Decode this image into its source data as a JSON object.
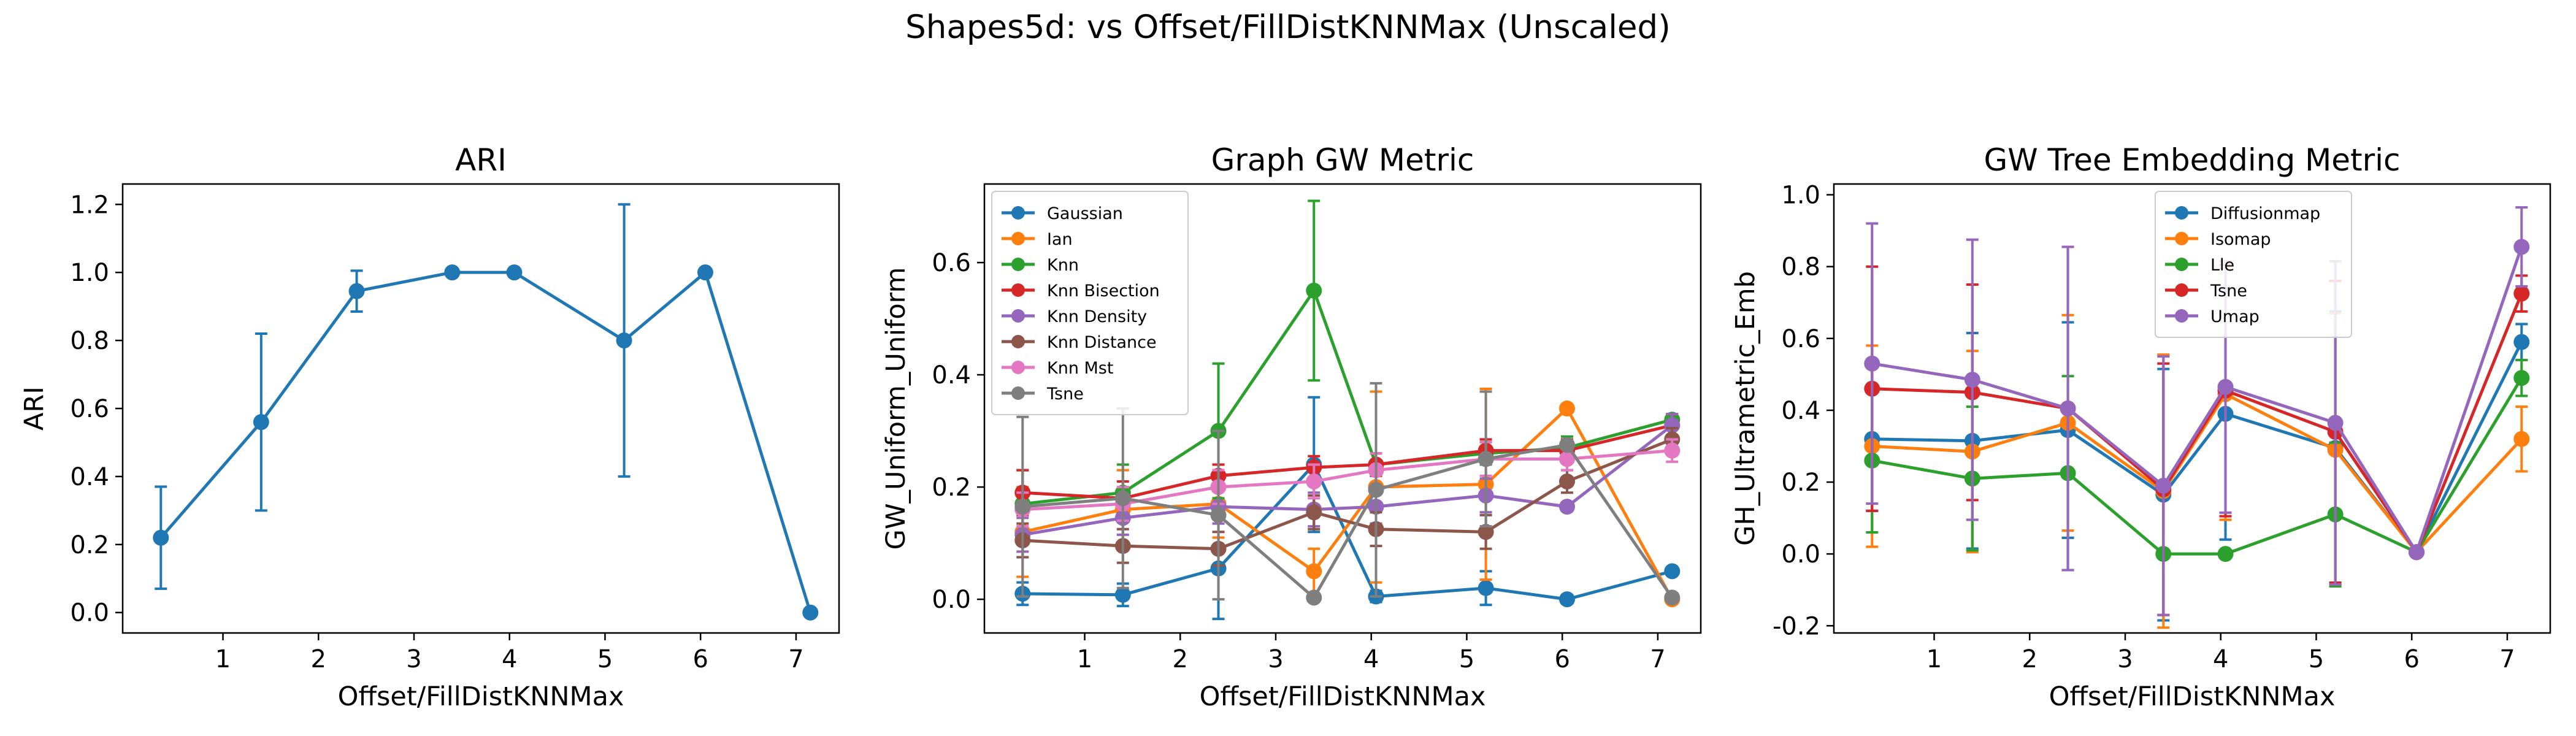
{
  "figure": {
    "title": "Shapes5d: vs Offset/FillDistKNNMax (Unscaled)"
  },
  "chart_data": [
    {
      "type": "line",
      "title": "ARI",
      "xlabel": "Offset/FillDistKNNMax",
      "ylabel": "ARI",
      "xlim": [
        -0.05,
        7.45
      ],
      "ylim": [
        -0.06,
        1.26
      ],
      "xticks": [
        1,
        2,
        3,
        4,
        5,
        6,
        7
      ],
      "yticks": [
        0.0,
        0.2,
        0.4,
        0.6,
        0.8,
        1.0,
        1.2
      ],
      "ytick_decimals": 1,
      "legend": null,
      "x": [
        0.35,
        1.4,
        2.4,
        3.4,
        4.05,
        5.2,
        6.05,
        7.15
      ],
      "series": [
        {
          "name": "",
          "color": "#1f77b4",
          "values": [
            0.22,
            0.56,
            0.945,
            1.0,
            1.0,
            0.8,
            1.0,
            0.0
          ],
          "err": [
            0.15,
            0.26,
            0.06,
            0.0,
            0.0,
            0.4,
            0.0,
            0.0
          ]
        }
      ]
    },
    {
      "type": "line",
      "title": "Graph GW Metric",
      "xlabel": "Offset/FillDistKNNMax",
      "ylabel": "GW_Uniform_Uniform",
      "xlim": [
        -0.05,
        7.45
      ],
      "ylim": [
        -0.06,
        0.74
      ],
      "xticks": [
        1,
        2,
        3,
        4,
        5,
        6,
        7
      ],
      "yticks": [
        0.0,
        0.2,
        0.4,
        0.6
      ],
      "ytick_decimals": 1,
      "legend": "top-left",
      "x": [
        0.35,
        1.4,
        2.4,
        3.4,
        4.05,
        5.2,
        6.05,
        7.15
      ],
      "series": [
        {
          "name": "Gaussian",
          "color": "#1f77b4",
          "values": [
            0.01,
            0.008,
            0.055,
            0.24,
            0.005,
            0.02,
            0.0,
            0.05
          ],
          "err": [
            0.02,
            0.02,
            0.09,
            0.12,
            0.01,
            0.03,
            0.0,
            0.0
          ]
        },
        {
          "name": "Ian",
          "color": "#ff7f0e",
          "values": [
            0.12,
            0.16,
            0.17,
            0.05,
            0.2,
            0.205,
            0.34,
            0.0
          ],
          "err": [
            0.08,
            0.07,
            0.06,
            0.04,
            0.17,
            0.17,
            0.0,
            0.0
          ]
        },
        {
          "name": "Knn",
          "color": "#2ca02c",
          "values": [
            0.17,
            0.19,
            0.3,
            0.55,
            0.24,
            0.26,
            0.27,
            0.32
          ],
          "err": [
            0.06,
            0.05,
            0.12,
            0.16,
            0.02,
            0.02,
            0.02,
            0.0
          ]
        },
        {
          "name": "Knn Bisection",
          "color": "#d62728",
          "values": [
            0.19,
            0.18,
            0.22,
            0.235,
            0.24,
            0.265,
            0.265,
            0.31
          ],
          "err": [
            0.04,
            0.03,
            0.02,
            0.02,
            0.02,
            0.02,
            0.02,
            0.02
          ]
        },
        {
          "name": "Knn Density",
          "color": "#9467bd",
          "values": [
            0.115,
            0.145,
            0.165,
            0.16,
            0.165,
            0.185,
            0.165,
            0.31
          ],
          "err": [
            0.03,
            0.03,
            0.03,
            0.03,
            0.03,
            0.03,
            0.0,
            0.02
          ]
        },
        {
          "name": "Knn Distance",
          "color": "#8c564b",
          "values": [
            0.105,
            0.095,
            0.09,
            0.155,
            0.125,
            0.12,
            0.21,
            0.285
          ],
          "err": [
            0.03,
            0.03,
            0.03,
            0.03,
            0.03,
            0.03,
            0.02,
            0.02
          ]
        },
        {
          "name": "Knn Mst",
          "color": "#e377c2",
          "values": [
            0.16,
            0.17,
            0.2,
            0.21,
            0.23,
            0.25,
            0.25,
            0.265
          ],
          "err": [
            0.03,
            0.03,
            0.03,
            0.03,
            0.03,
            0.03,
            0.02,
            0.02
          ]
        },
        {
          "name": "Tsne",
          "color": "#7f7f7f",
          "values": [
            0.165,
            0.18,
            0.15,
            0.003,
            0.195,
            0.25,
            0.275,
            0.003
          ],
          "err": [
            0.16,
            0.16,
            0.15,
            0.0,
            0.19,
            0.12,
            0.0,
            0.0
          ]
        }
      ]
    },
    {
      "type": "line",
      "title": "GW Tree Embedding Metric",
      "xlabel": "Offset/FillDistKNNMax",
      "ylabel": "GH_Ultrametric_Emb",
      "xlim": [
        -0.05,
        7.45
      ],
      "ylim": [
        -0.22,
        1.03
      ],
      "xticks": [
        1,
        2,
        3,
        4,
        5,
        6,
        7
      ],
      "yticks": [
        -0.2,
        0.0,
        0.2,
        0.4,
        0.6,
        0.8,
        1.0
      ],
      "ytick_decimals": 1,
      "legend": "top-center",
      "x": [
        0.35,
        1.4,
        2.4,
        3.4,
        4.05,
        5.2,
        6.05,
        7.15
      ],
      "series": [
        {
          "name": "Diffusionmap",
          "color": "#1f77b4",
          "values": [
            0.32,
            0.315,
            0.345,
            0.165,
            0.39,
            0.295,
            0.005,
            0.59
          ],
          "err": [
            0.2,
            0.3,
            0.3,
            0.35,
            0.35,
            0.38,
            0.0,
            0.05
          ]
        },
        {
          "name": "Isomap",
          "color": "#ff7f0e",
          "values": [
            0.3,
            0.285,
            0.365,
            0.175,
            0.445,
            0.29,
            0.005,
            0.32
          ],
          "err": [
            0.28,
            0.28,
            0.3,
            0.38,
            0.35,
            0.38,
            0.0,
            0.09
          ]
        },
        {
          "name": "Lle",
          "color": "#2ca02c",
          "values": [
            0.26,
            0.21,
            0.225,
            0.0,
            0.0,
            0.11,
            0.005,
            0.49
          ],
          "err": [
            0.2,
            0.2,
            0.27,
            0.0,
            0.0,
            0.2,
            0.0,
            0.05
          ]
        },
        {
          "name": "Tsne",
          "color": "#d62728",
          "values": [
            0.46,
            0.45,
            0.405,
            0.18,
            0.455,
            0.34,
            0.005,
            0.725
          ],
          "err": [
            0.34,
            0.3,
            0.45,
            0.35,
            0.35,
            0.42,
            0.0,
            0.05
          ]
        },
        {
          "name": "Umap",
          "color": "#9467bd",
          "values": [
            0.53,
            0.485,
            0.405,
            0.19,
            0.465,
            0.365,
            0.005,
            0.855
          ],
          "err": [
            0.39,
            0.39,
            0.45,
            0.36,
            0.35,
            0.45,
            0.0,
            0.11
          ]
        }
      ]
    }
  ]
}
